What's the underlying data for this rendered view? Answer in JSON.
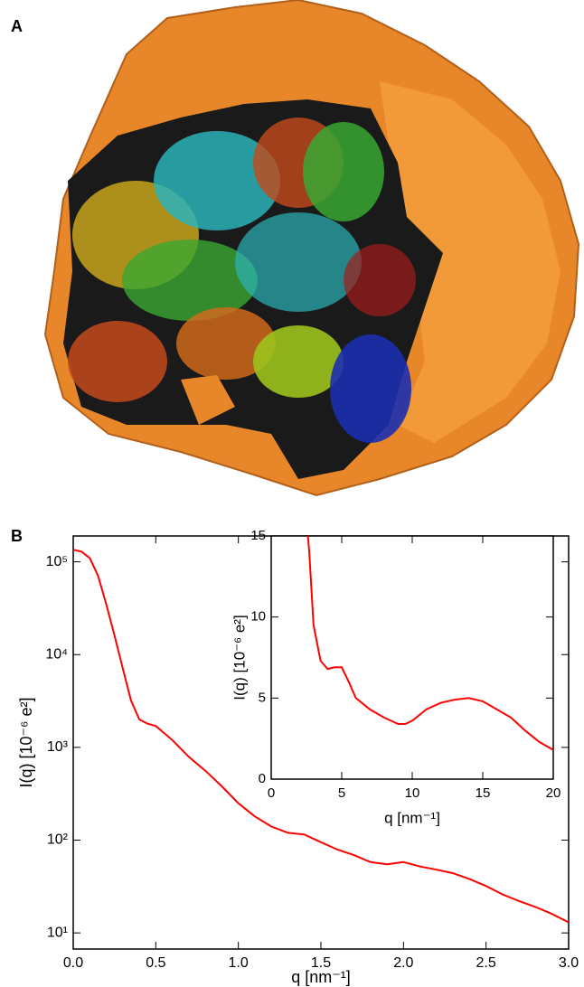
{
  "panels": {
    "a": "A",
    "b": "B"
  },
  "chart_data": [
    {
      "type": "line",
      "log_y": true,
      "color": "#ff0000",
      "xlabel": "q [nm⁻¹]",
      "ylabel": "I(q) [10⁻⁶ e²]",
      "x": [
        0,
        0.05,
        0.1,
        0.15,
        0.2,
        0.25,
        0.3,
        0.35,
        0.4,
        0.45,
        0.5,
        0.6,
        0.7,
        0.8,
        0.9,
        1.0,
        1.1,
        1.2,
        1.3,
        1.4,
        1.5,
        1.6,
        1.7,
        1.8,
        1.9,
        2.0,
        2.1,
        2.2,
        2.3,
        2.4,
        2.5,
        2.6,
        2.7,
        2.8,
        2.9,
        3.0
      ],
      "values": [
        135000,
        129000,
        110000,
        71000,
        35000,
        16000,
        7100,
        3200,
        2000,
        1800,
        1700,
        1200,
        790,
        560,
        380,
        250,
        180,
        140,
        120,
        115,
        95,
        79,
        69,
        58,
        55,
        58,
        52,
        48,
        44,
        38,
        32,
        26,
        22,
        19,
        16,
        13
      ],
      "xlim": [
        0,
        3
      ],
      "ylim": [
        6.7,
        190000
      ],
      "xticks": [
        {
          "value": 0,
          "label": "0.0"
        },
        {
          "value": 0.5,
          "label": "0.5"
        },
        {
          "value": 1,
          "label": "1.0"
        },
        {
          "value": 1.5,
          "label": "1.5"
        },
        {
          "value": 2,
          "label": "2.0"
        },
        {
          "value": 2.5,
          "label": "2.5"
        },
        {
          "value": 3,
          "label": "3.0"
        }
      ],
      "yticks": [
        {
          "value": 10,
          "label": "10¹"
        },
        {
          "value": 100,
          "label": "10²"
        },
        {
          "value": 1000,
          "label": "10³"
        },
        {
          "value": 10000,
          "label": "10⁴"
        },
        {
          "value": 100000,
          "label": "10⁵"
        }
      ]
    },
    {
      "type": "line",
      "log_y": false,
      "color": "#ff0000",
      "xlabel": "q [nm⁻¹]",
      "ylabel": "I(q) [10⁻⁶ e²]",
      "x": [
        2.6,
        2.7,
        3,
        3.5,
        4,
        4.5,
        5,
        5.5,
        6,
        7,
        8,
        9,
        9.5,
        10,
        11,
        12,
        13,
        14,
        15,
        16,
        17,
        18,
        19,
        20
      ],
      "values": [
        15,
        14,
        9.5,
        7.3,
        6.8,
        6.9,
        6.9,
        6.0,
        5.0,
        4.3,
        3.8,
        3.4,
        3.4,
        3.6,
        4.3,
        4.7,
        4.9,
        5.0,
        4.8,
        4.3,
        3.8,
        3.0,
        2.3,
        1.8
      ],
      "xlim": [
        0,
        20
      ],
      "ylim": [
        0,
        15
      ],
      "xticks": [
        0,
        5,
        10,
        15,
        20
      ],
      "yticks": [
        0,
        5,
        10,
        15
      ]
    }
  ]
}
